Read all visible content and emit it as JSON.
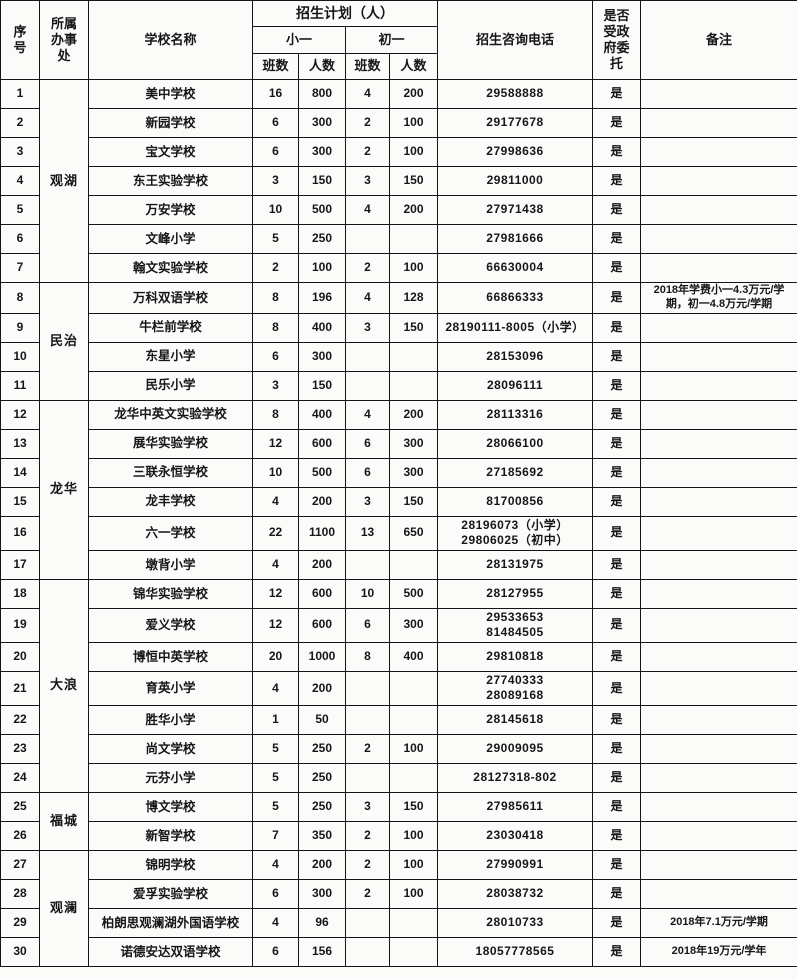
{
  "colors": {
    "background": "#fbfbf9",
    "border": "#141414",
    "text": "#161616"
  },
  "table": {
    "header": {
      "seq": "序\n号",
      "office": "所属\n办事\n处",
      "school": "学校名称",
      "plan_group": "招生计划（人）",
      "primary": "小一",
      "junior": "初一",
      "classes1": "班数",
      "students1": "人数",
      "classes2": "班数",
      "students2": "人数",
      "phone": "招生咨询电话",
      "entrusted": "是否\n受政\n府委\n托",
      "remark": "备注"
    },
    "office_groups": [
      {
        "label": "观湖",
        "rows": "1-7"
      },
      {
        "label": "民治",
        "rows": "8-11"
      },
      {
        "label": "龙华",
        "rows": "12-17"
      },
      {
        "label": "大浪",
        "rows": "18-24"
      },
      {
        "label": "福城",
        "rows": "25-26"
      },
      {
        "label": "观澜",
        "rows": "27-30"
      }
    ],
    "rows": [
      {
        "no": "1",
        "office": {
          "label": "观湖",
          "rowspan": 7
        },
        "school": "美中学校",
        "p_classes": "16",
        "p_students": "800",
        "j_classes": "4",
        "j_students": "200",
        "phone": "29588888",
        "entrusted": "是",
        "remark": ""
      },
      {
        "no": "2",
        "school": "新园学校",
        "p_classes": "6",
        "p_students": "300",
        "j_classes": "2",
        "j_students": "100",
        "phone": "29177678",
        "entrusted": "是",
        "remark": ""
      },
      {
        "no": "3",
        "school": "宝文学校",
        "p_classes": "6",
        "p_students": "300",
        "j_classes": "2",
        "j_students": "100",
        "phone": "27998636",
        "entrusted": "是",
        "remark": ""
      },
      {
        "no": "4",
        "school": "东王实验学校",
        "p_classes": "3",
        "p_students": "150",
        "j_classes": "3",
        "j_students": "150",
        "phone": "29811000",
        "entrusted": "是",
        "remark": ""
      },
      {
        "no": "5",
        "school": "万安学校",
        "p_classes": "10",
        "p_students": "500",
        "j_classes": "4",
        "j_students": "200",
        "phone": "27971438",
        "entrusted": "是",
        "remark": ""
      },
      {
        "no": "6",
        "school": "文峰小学",
        "p_classes": "5",
        "p_students": "250",
        "j_classes": "",
        "j_students": "",
        "phone": "27981666",
        "entrusted": "是",
        "remark": ""
      },
      {
        "no": "7",
        "school": "翰文实验学校",
        "p_classes": "2",
        "p_students": "100",
        "j_classes": "2",
        "j_students": "100",
        "phone": "66630004",
        "entrusted": "是",
        "remark": ""
      },
      {
        "no": "8",
        "office": {
          "label": "民治",
          "rowspan": 4
        },
        "school": "万科双语学校",
        "p_classes": "8",
        "p_students": "196",
        "j_classes": "4",
        "j_students": "128",
        "phone": "66866333",
        "entrusted": "是",
        "remark": "2018年学费小一4.3万元/学期，初一4.8万元/学期"
      },
      {
        "no": "9",
        "school": "牛栏前学校",
        "p_classes": "8",
        "p_students": "400",
        "j_classes": "3",
        "j_students": "150",
        "phone": "28190111-8005（小学）",
        "entrusted": "是",
        "remark": ""
      },
      {
        "no": "10",
        "school": "东星小学",
        "p_classes": "6",
        "p_students": "300",
        "j_classes": "",
        "j_students": "",
        "phone": "28153096",
        "entrusted": "是",
        "remark": ""
      },
      {
        "no": "11",
        "school": "民乐小学",
        "p_classes": "3",
        "p_students": "150",
        "j_classes": "",
        "j_students": "",
        "phone": "28096111",
        "entrusted": "是",
        "remark": ""
      },
      {
        "no": "12",
        "office": {
          "label": "龙华",
          "rowspan": 6
        },
        "school": "龙华中英文实验学校",
        "p_classes": "8",
        "p_students": "400",
        "j_classes": "4",
        "j_students": "200",
        "phone": "28113316",
        "entrusted": "是",
        "remark": ""
      },
      {
        "no": "13",
        "school": "展华实验学校",
        "p_classes": "12",
        "p_students": "600",
        "j_classes": "6",
        "j_students": "300",
        "phone": "28066100",
        "entrusted": "是",
        "remark": ""
      },
      {
        "no": "14",
        "school": "三联永恒学校",
        "p_classes": "10",
        "p_students": "500",
        "j_classes": "6",
        "j_students": "300",
        "phone": "27185692",
        "entrusted": "是",
        "remark": ""
      },
      {
        "no": "15",
        "school": "龙丰学校",
        "p_classes": "4",
        "p_students": "200",
        "j_classes": "3",
        "j_students": "150",
        "phone": "81700856",
        "entrusted": "是",
        "remark": ""
      },
      {
        "no": "16",
        "school": "六一学校",
        "p_classes": "22",
        "p_students": "1100",
        "j_classes": "13",
        "j_students": "650",
        "phone": "28196073（小学）\n29806025（初中）",
        "entrusted": "是",
        "remark": ""
      },
      {
        "no": "17",
        "school": "墩背小学",
        "p_classes": "4",
        "p_students": "200",
        "j_classes": "",
        "j_students": "",
        "phone": "28131975",
        "entrusted": "是",
        "remark": ""
      },
      {
        "no": "18",
        "office": {
          "label": "大浪",
          "rowspan": 7
        },
        "school": "锦华实验学校",
        "p_classes": "12",
        "p_students": "600",
        "j_classes": "10",
        "j_students": "500",
        "phone": "28127955",
        "entrusted": "是",
        "remark": ""
      },
      {
        "no": "19",
        "school": "爱义学校",
        "p_classes": "12",
        "p_students": "600",
        "j_classes": "6",
        "j_students": "300",
        "phone": "29533653\n81484505",
        "entrusted": "是",
        "remark": ""
      },
      {
        "no": "20",
        "school": "博恒中英学校",
        "p_classes": "20",
        "p_students": "1000",
        "j_classes": "8",
        "j_students": "400",
        "phone": "29810818",
        "entrusted": "是",
        "remark": ""
      },
      {
        "no": "21",
        "school": "育英小学",
        "p_classes": "4",
        "p_students": "200",
        "j_classes": "",
        "j_students": "",
        "phone": "27740333\n28089168",
        "entrusted": "是",
        "remark": ""
      },
      {
        "no": "22",
        "school": "胜华小学",
        "p_classes": "1",
        "p_students": "50",
        "j_classes": "",
        "j_students": "",
        "phone": "28145618",
        "entrusted": "是",
        "remark": ""
      },
      {
        "no": "23",
        "school": "尚文学校",
        "p_classes": "5",
        "p_students": "250",
        "j_classes": "2",
        "j_students": "100",
        "phone": "29009095",
        "entrusted": "是",
        "remark": ""
      },
      {
        "no": "24",
        "school": "元芬小学",
        "p_classes": "5",
        "p_students": "250",
        "j_classes": "",
        "j_students": "",
        "phone": "28127318-802",
        "entrusted": "是",
        "remark": ""
      },
      {
        "no": "25",
        "office": {
          "label": "福城",
          "rowspan": 2
        },
        "school": "博文学校",
        "p_classes": "5",
        "p_students": "250",
        "j_classes": "3",
        "j_students": "150",
        "phone": "27985611",
        "entrusted": "是",
        "remark": ""
      },
      {
        "no": "26",
        "school": "新智学校",
        "p_classes": "7",
        "p_students": "350",
        "j_classes": "2",
        "j_students": "100",
        "phone": "23030418",
        "entrusted": "是",
        "remark": ""
      },
      {
        "no": "27",
        "office": {
          "label": "观澜",
          "rowspan": 4
        },
        "school": "锦明学校",
        "p_classes": "4",
        "p_students": "200",
        "j_classes": "2",
        "j_students": "100",
        "phone": "27990991",
        "entrusted": "是",
        "remark": ""
      },
      {
        "no": "28",
        "school": "爱孚实验学校",
        "p_classes": "6",
        "p_students": "300",
        "j_classes": "2",
        "j_students": "100",
        "phone": "28038732",
        "entrusted": "是",
        "remark": ""
      },
      {
        "no": "29",
        "school": "柏朗思观澜湖外国语学校",
        "p_classes": "4",
        "p_students": "96",
        "j_classes": "",
        "j_students": "",
        "phone": "28010733",
        "entrusted": "是",
        "remark": "2018年7.1万元/学期"
      },
      {
        "no": "30",
        "school": "诺德安达双语学校",
        "p_classes": "6",
        "p_students": "156",
        "j_classes": "",
        "j_students": "",
        "phone": "18057778565",
        "entrusted": "是",
        "remark": "2018年19万元/学年"
      }
    ]
  }
}
